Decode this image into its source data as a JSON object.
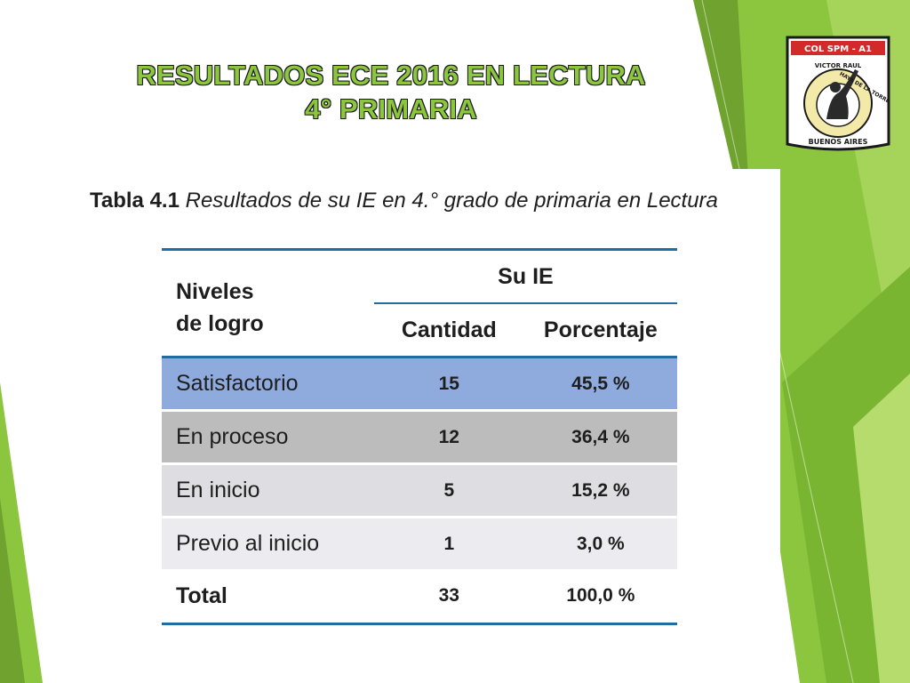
{
  "slide": {
    "title_line1": "RESULTADOS ECE 2016 EN LECTURA",
    "title_line2": "4° PRIMARIA"
  },
  "caption": {
    "bold": "Tabla 4.1",
    "italic": "Resultados de su IE en 4.° grado de primaria en Lectura"
  },
  "table": {
    "header_level": "Niveles de logro",
    "header_level_line1": "Niveles",
    "header_level_line2": "de logro",
    "header_group": "Su IE",
    "header_quantity": "Cantidad",
    "header_percent": "Porcentaje",
    "rows": [
      {
        "level": "Satisfactorio",
        "quantity": "15",
        "percent": "45,5 %"
      },
      {
        "level": "En proceso",
        "quantity": "12",
        "percent": "36,4 %"
      },
      {
        "level": "En inicio",
        "quantity": "5",
        "percent": "15,2 %"
      },
      {
        "level": "Previo al inicio",
        "quantity": "1",
        "percent": "3,0 %"
      }
    ],
    "total": {
      "level": "Total",
      "quantity": "33",
      "percent": "100,0 %"
    }
  },
  "logo": {
    "top_text": "COL SPM - A1",
    "ring_text_left": "VICTOR RAUL",
    "ring_text_right": "HAYA DE LA TORRE",
    "bottom_text": "BUENOS AIRES"
  },
  "colors": {
    "title_green": "#8cc63f",
    "accent_green": "#7ab532",
    "table_blue_line": "#1f6da1",
    "row_satisfactorio": "#8faadc",
    "row_en_proceso": "#bcbcbc",
    "row_en_inicio": "#dddde2",
    "row_previo": "#ececf0"
  }
}
